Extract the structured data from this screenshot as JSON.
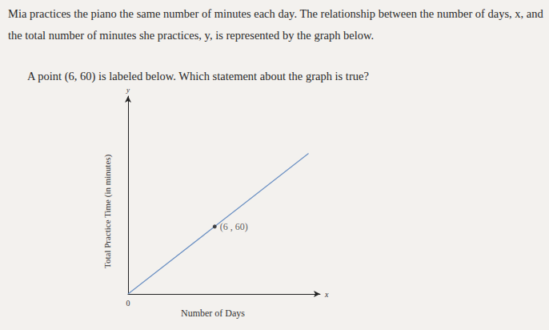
{
  "question": {
    "paragraphs": [
      "Mia practices the piano the same number of minutes each day. The relationship between the number of days, x, and the total number of minutes she practices, y, is represented by the graph below.",
      "A point (6, 60) is labeled below. Which statement about the graph is true?"
    ]
  },
  "chart_data": {
    "type": "line",
    "xlabel": "Number of Days",
    "ylabel": "Total Practice Time (in minutes)",
    "axis_symbols": {
      "x": "x",
      "y": "y"
    },
    "x": [
      0,
      6,
      12.5
    ],
    "values": [
      0,
      60,
      125
    ],
    "color": "#6f93c4",
    "xlim": [
      0,
      13.3
    ],
    "ylim": [
      0,
      176
    ],
    "xticks": [
      0
    ],
    "grid": false,
    "marker": "arrow",
    "annotations": [
      {
        "text": "(6 , 60)",
        "x": 6,
        "y": 60
      }
    ]
  }
}
